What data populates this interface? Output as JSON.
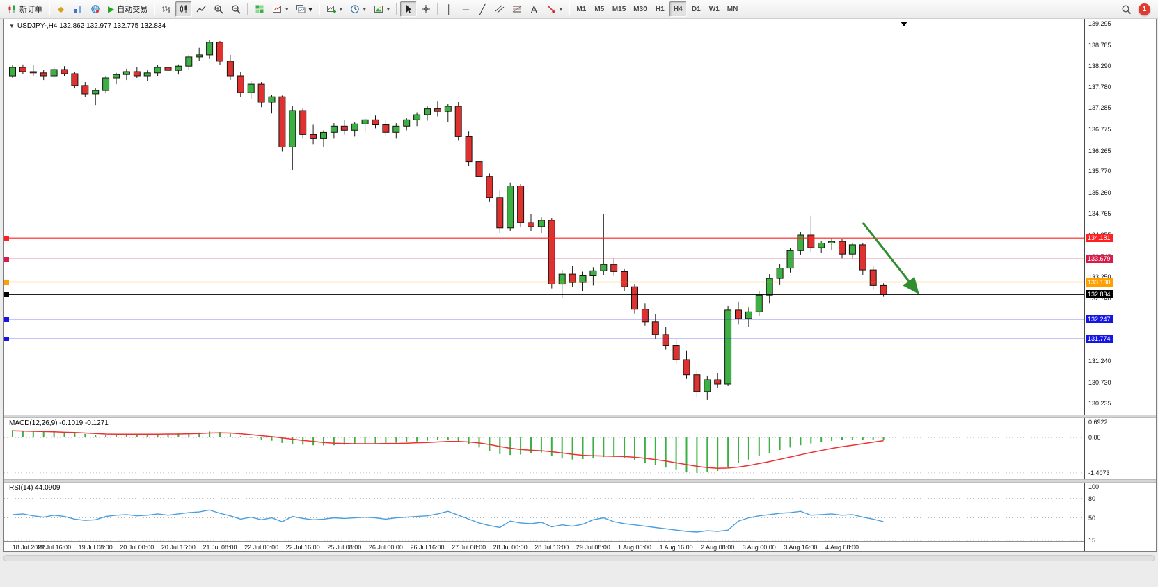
{
  "colors": {
    "up": "#3cb043",
    "down": "#e03131",
    "wick": "#1a1a1a",
    "macd_hist": "#3cb043",
    "macd_signal": "#f03030",
    "rsi_line": "#4a9ede",
    "accent_blue": "#1515e6",
    "accent_red": "#ff2121",
    "accent_crimson": "#d81b4a",
    "accent_orange": "#ff9f00"
  },
  "icons": {
    "vertical_line": "│",
    "horizontal_line": "─",
    "trendline": "╱",
    "text_tool": "A",
    "autotrading_play": "▶",
    "metaeditor_diamond": "◆",
    "dropdown_arrow": "▾",
    "collapse_arrow": "▼"
  },
  "toolbar": {
    "new_order_label": "新订单",
    "auto_trading_label": "自动交易",
    "notification_count": "1",
    "timeframes": [
      {
        "label": "M1",
        "active": false
      },
      {
        "label": "M5",
        "active": false
      },
      {
        "label": "M15",
        "active": false
      },
      {
        "label": "M30",
        "active": false
      },
      {
        "label": "H1",
        "active": false
      },
      {
        "label": "H4",
        "active": true
      },
      {
        "label": "D1",
        "active": false
      },
      {
        "label": "W1",
        "active": false
      },
      {
        "label": "MN",
        "active": false
      }
    ]
  },
  "chart": {
    "title": "USDJPY-,H4  132.862 132.977 132.775 132.834"
  },
  "indicators": {
    "macd_label": "MACD(12,26,9) -0.1019 -0.1271",
    "rsi_label": "RSI(14) 44.0909"
  },
  "chart_data": [
    {
      "type": "candlestick",
      "symbol": "USDJPY-",
      "timeframe": "H4",
      "open": 132.862,
      "high": 132.977,
      "low": 132.775,
      "close": 132.834,
      "y_axis": {
        "min": 130.235,
        "max": 139.295,
        "ticks": [
          "139.295",
          "138.785",
          "138.290",
          "137.780",
          "137.285",
          "136.775",
          "136.265",
          "135.770",
          "135.260",
          "134.765",
          "134.255",
          "133.745",
          "133.250",
          "132.740",
          "132.245",
          "131.735",
          "131.240",
          "130.730",
          "130.235"
        ]
      },
      "x_labels": [
        "18 Jul 2022",
        "18 Jul 16:00",
        "19 Jul 08:00",
        "20 Jul 00:00",
        "20 Jul 16:00",
        "21 Jul 08:00",
        "22 Jul 00:00",
        "22 Jul 16:00",
        "25 Jul 08:00",
        "26 Jul 00:00",
        "26 Jul 16:00",
        "27 Jul 08:00",
        "28 Jul 00:00",
        "28 Jul 16:00",
        "29 Jul 08:00",
        "1 Aug 00:00",
        "1 Aug 16:00",
        "2 Aug 08:00",
        "3 Aug 00:00",
        "3 Aug 16:00",
        "4 Aug 08:00"
      ],
      "hlines": [
        {
          "price": 134.181,
          "label": "134.181",
          "color": "#ff2121",
          "current": false
        },
        {
          "price": 133.679,
          "label": "133.679",
          "color": "#d81b4a",
          "current": false
        },
        {
          "price": 133.13,
          "label": "133.130",
          "color": "#ff9f00",
          "current": false
        },
        {
          "price": 132.834,
          "label": "132.834",
          "color": "#000000",
          "current": true
        },
        {
          "price": 132.247,
          "label": "132.247",
          "color": "#1515e6",
          "current": false
        },
        {
          "price": 131.774,
          "label": "131.774",
          "color": "#1515e6",
          "current": false
        }
      ],
      "arrow": {
        "x1_bar": 82,
        "p1": 134.55,
        "x2_bar": 87.3,
        "p2": 132.88,
        "color": "#2f8f2f"
      },
      "candles": [
        [
          138.05,
          138.3,
          138.0,
          138.25
        ],
        [
          138.25,
          138.32,
          138.1,
          138.15
        ],
        [
          138.15,
          138.3,
          138.05,
          138.12
        ],
        [
          138.12,
          138.2,
          137.95,
          138.05
        ],
        [
          138.05,
          138.25,
          138.0,
          138.2
        ],
        [
          138.2,
          138.28,
          138.05,
          138.1
        ],
        [
          138.1,
          138.15,
          137.75,
          137.82
        ],
        [
          137.82,
          137.9,
          137.55,
          137.62
        ],
        [
          137.62,
          137.75,
          137.35,
          137.7
        ],
        [
          137.7,
          138.05,
          137.65,
          138.0
        ],
        [
          138.0,
          138.12,
          137.85,
          138.08
        ],
        [
          138.08,
          138.22,
          137.95,
          138.15
        ],
        [
          138.15,
          138.25,
          138.0,
          138.05
        ],
        [
          138.05,
          138.18,
          137.92,
          138.12
        ],
        [
          138.12,
          138.3,
          138.05,
          138.25
        ],
        [
          138.25,
          138.38,
          138.1,
          138.18
        ],
        [
          138.18,
          138.32,
          138.08,
          138.28
        ],
        [
          138.28,
          138.55,
          138.2,
          138.5
        ],
        [
          138.5,
          138.72,
          138.4,
          138.55
        ],
        [
          138.55,
          138.9,
          138.45,
          138.85
        ],
        [
          138.85,
          138.88,
          138.3,
          138.4
        ],
        [
          138.4,
          138.55,
          137.95,
          138.05
        ],
        [
          138.05,
          138.15,
          137.55,
          137.65
        ],
        [
          137.65,
          137.92,
          137.5,
          137.85
        ],
        [
          137.85,
          137.9,
          137.3,
          137.42
        ],
        [
          137.42,
          137.6,
          137.15,
          137.55
        ],
        [
          137.55,
          137.58,
          136.25,
          136.35
        ],
        [
          136.35,
          137.32,
          135.8,
          137.22
        ],
        [
          137.22,
          137.28,
          136.55,
          136.65
        ],
        [
          136.65,
          136.88,
          136.42,
          136.55
        ],
        [
          136.55,
          136.75,
          136.35,
          136.7
        ],
        [
          136.7,
          136.92,
          136.55,
          136.85
        ],
        [
          136.85,
          137.0,
          136.65,
          136.75
        ],
        [
          136.75,
          136.95,
          136.6,
          136.9
        ],
        [
          136.9,
          137.05,
          136.7,
          137.0
        ],
        [
          137.0,
          137.1,
          136.8,
          136.88
        ],
        [
          136.88,
          137.0,
          136.6,
          136.7
        ],
        [
          136.7,
          136.92,
          136.55,
          136.85
        ],
        [
          136.85,
          137.05,
          136.75,
          137.0
        ],
        [
          137.0,
          137.18,
          136.85,
          137.12
        ],
        [
          137.12,
          137.32,
          136.98,
          137.26
        ],
        [
          137.26,
          137.45,
          137.08,
          137.2
        ],
        [
          137.2,
          137.38,
          136.95,
          137.32
        ],
        [
          137.32,
          137.42,
          136.5,
          136.6
        ],
        [
          136.6,
          136.72,
          135.9,
          136.0
        ],
        [
          136.0,
          136.2,
          135.55,
          135.65
        ],
        [
          135.65,
          135.72,
          135.05,
          135.15
        ],
        [
          135.15,
          135.32,
          134.3,
          134.42
        ],
        [
          134.42,
          135.5,
          134.35,
          135.42
        ],
        [
          135.42,
          135.48,
          134.45,
          134.55
        ],
        [
          134.55,
          134.75,
          134.35,
          134.45
        ],
        [
          134.45,
          134.68,
          134.3,
          134.6
        ],
        [
          134.6,
          134.66,
          132.98,
          133.08
        ],
        [
          133.08,
          133.42,
          132.75,
          133.32
        ],
        [
          133.32,
          133.52,
          133.02,
          133.12
        ],
        [
          133.12,
          133.38,
          132.92,
          133.28
        ],
        [
          133.28,
          133.48,
          133.05,
          133.4
        ],
        [
          133.4,
          134.75,
          133.3,
          133.55
        ],
        [
          133.55,
          133.7,
          133.28,
          133.38
        ],
        [
          133.38,
          133.44,
          132.92,
          133.02
        ],
        [
          133.02,
          133.08,
          132.38,
          132.48
        ],
        [
          132.48,
          132.62,
          132.08,
          132.18
        ],
        [
          132.18,
          132.36,
          131.78,
          131.88
        ],
        [
          131.88,
          132.06,
          131.52,
          131.62
        ],
        [
          131.62,
          131.76,
          131.18,
          131.28
        ],
        [
          131.28,
          131.5,
          130.82,
          130.92
        ],
        [
          130.92,
          131.02,
          130.38,
          130.52
        ],
        [
          130.52,
          130.9,
          130.32,
          130.8
        ],
        [
          130.8,
          130.95,
          130.6,
          130.7
        ],
        [
          130.7,
          132.56,
          130.65,
          132.46
        ],
        [
          132.46,
          132.66,
          132.12,
          132.26
        ],
        [
          132.26,
          132.52,
          132.06,
          132.42
        ],
        [
          132.42,
          132.92,
          132.32,
          132.82
        ],
        [
          132.82,
          133.32,
          132.62,
          133.22
        ],
        [
          133.22,
          133.56,
          133.06,
          133.46
        ],
        [
          133.46,
          133.95,
          133.36,
          133.88
        ],
        [
          133.88,
          134.32,
          133.78,
          134.25
        ],
        [
          134.25,
          134.72,
          133.85,
          133.95
        ],
        [
          133.95,
          134.12,
          133.82,
          134.06
        ],
        [
          134.06,
          134.18,
          133.9,
          134.1
        ],
        [
          134.1,
          134.16,
          133.7,
          133.8
        ],
        [
          133.8,
          134.06,
          133.7,
          134.02
        ],
        [
          134.02,
          134.06,
          133.3,
          133.42
        ],
        [
          133.42,
          133.5,
          132.95,
          133.05
        ],
        [
          133.05,
          133.1,
          132.78,
          132.834
        ]
      ]
    },
    {
      "type": "macd",
      "label": "MACD(12,26,9) -0.1019 -0.1271",
      "macd_value": -0.1019,
      "signal_value": -0.1271,
      "ticks": [
        "0.6922",
        "0.00",
        "-1.4073"
      ],
      "hist": [
        0.3,
        0.27,
        0.25,
        0.23,
        0.21,
        0.19,
        0.17,
        0.14,
        0.11,
        0.1,
        0.12,
        0.14,
        0.14,
        0.13,
        0.14,
        0.15,
        0.16,
        0.18,
        0.2,
        0.24,
        0.22,
        0.15,
        0.05,
        -0.02,
        -0.08,
        -0.13,
        -0.22,
        -0.26,
        -0.29,
        -0.31,
        -0.32,
        -0.31,
        -0.29,
        -0.27,
        -0.25,
        -0.23,
        -0.22,
        -0.21,
        -0.19,
        -0.16,
        -0.13,
        -0.11,
        -0.09,
        -0.14,
        -0.26,
        -0.4,
        -0.54,
        -0.66,
        -0.7,
        -0.68,
        -0.64,
        -0.6,
        -0.73,
        -0.84,
        -0.88,
        -0.86,
        -0.82,
        -0.78,
        -0.78,
        -0.82,
        -0.9,
        -1.0,
        -1.1,
        -1.2,
        -1.3,
        -1.38,
        -1.41,
        -1.38,
        -1.33,
        -1.18,
        -1.02,
        -0.88,
        -0.74,
        -0.62,
        -0.5,
        -0.4,
        -0.31,
        -0.24,
        -0.18,
        -0.14,
        -0.11,
        -0.09,
        -0.09,
        -0.1,
        -0.102
      ],
      "signal": [
        0.27,
        0.26,
        0.25,
        0.24,
        0.23,
        0.21,
        0.2,
        0.18,
        0.16,
        0.14,
        0.13,
        0.13,
        0.13,
        0.13,
        0.13,
        0.14,
        0.14,
        0.15,
        0.16,
        0.18,
        0.19,
        0.18,
        0.15,
        0.11,
        0.07,
        0.03,
        -0.02,
        -0.07,
        -0.12,
        -0.16,
        -0.2,
        -0.23,
        -0.24,
        -0.25,
        -0.25,
        -0.25,
        -0.24,
        -0.24,
        -0.23,
        -0.21,
        -0.2,
        -0.18,
        -0.16,
        -0.16,
        -0.18,
        -0.22,
        -0.28,
        -0.36,
        -0.43,
        -0.48,
        -0.51,
        -0.53,
        -0.57,
        -0.62,
        -0.67,
        -0.71,
        -0.73,
        -0.74,
        -0.75,
        -0.76,
        -0.79,
        -0.83,
        -0.88,
        -0.94,
        -1.01,
        -1.08,
        -1.15,
        -1.2,
        -1.23,
        -1.22,
        -1.18,
        -1.12,
        -1.04,
        -0.96,
        -0.87,
        -0.78,
        -0.69,
        -0.6,
        -0.52,
        -0.44,
        -0.37,
        -0.31,
        -0.25,
        -0.19,
        -0.127
      ]
    },
    {
      "type": "line",
      "label": "RSI(14) 44.0909",
      "rsi_value": 44.0909,
      "ticks": [
        "100",
        "80",
        "50",
        "15"
      ],
      "levels": [
        80,
        50,
        15
      ],
      "values": [
        55,
        56,
        53,
        51,
        54,
        52,
        48,
        46,
        47,
        52,
        54,
        55,
        53,
        54,
        56,
        54,
        56,
        58,
        59,
        62,
        57,
        53,
        48,
        51,
        47,
        50,
        44,
        52,
        49,
        47,
        48,
        50,
        49,
        50,
        51,
        50,
        48,
        50,
        51,
        52,
        53,
        56,
        60,
        54,
        48,
        42,
        38,
        35,
        45,
        42,
        41,
        43,
        36,
        39,
        37,
        40,
        47,
        50,
        44,
        41,
        39,
        37,
        35,
        33,
        31,
        29,
        28,
        30,
        29,
        31,
        45,
        50,
        53,
        55,
        57,
        58,
        60,
        54,
        55,
        56,
        54,
        55,
        51,
        48,
        44.1
      ]
    }
  ]
}
